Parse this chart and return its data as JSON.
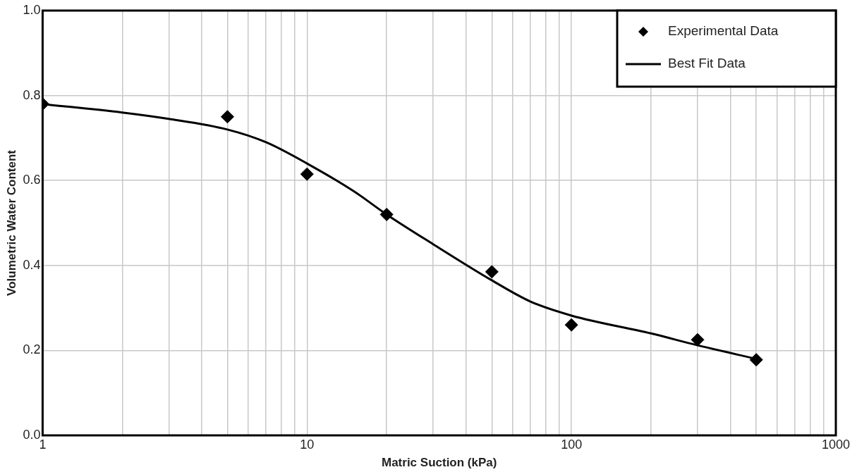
{
  "chart_data": {
    "type": "scatter",
    "xlabel": "Matric Suction (kPa)",
    "ylabel": "Volumetric Water Content",
    "log": "x",
    "grid": true,
    "legend": "top right",
    "xlim": [
      1,
      1000
    ],
    "xticks": [
      1,
      {
        "value": 2,
        "label": null
      },
      {
        "value": 3,
        "label": null
      },
      {
        "value": 4,
        "label": null
      },
      {
        "value": 5,
        "label": null
      },
      {
        "value": 6,
        "label": null
      },
      {
        "value": 7,
        "label": null
      },
      {
        "value": 8,
        "label": null
      },
      {
        "value": 9,
        "label": null
      },
      10,
      {
        "value": 20,
        "label": null
      },
      {
        "value": 30,
        "label": null
      },
      {
        "value": 40,
        "label": null
      },
      {
        "value": 50,
        "label": null
      },
      {
        "value": 60,
        "label": null
      },
      {
        "value": 70,
        "label": null
      },
      {
        "value": 80,
        "label": null
      },
      {
        "value": 90,
        "label": null
      },
      100,
      {
        "value": 200,
        "label": null
      },
      {
        "value": 300,
        "label": null
      },
      {
        "value": 400,
        "label": null
      },
      {
        "value": 500,
        "label": null
      },
      {
        "value": 600,
        "label": null
      },
      {
        "value": 700,
        "label": null
      },
      {
        "value": 800,
        "label": null
      },
      {
        "value": 900,
        "label": null
      },
      1000
    ],
    "ylim": [
      0,
      1
    ],
    "yticks": [
      {
        "value": 0,
        "label": "0.0"
      },
      0.2,
      0.4,
      0.6,
      0.8,
      {
        "value": 1,
        "label": "1.0"
      }
    ],
    "series": [
      {
        "name": "Experimental Data",
        "marker": "diamond",
        "color": "#000000",
        "x": [
          1,
          5,
          10,
          20,
          50,
          100,
          300,
          500
        ],
        "values": [
          0.78,
          0.75,
          0.615,
          0.52,
          0.385,
          0.26,
          0.225,
          0.178
        ]
      },
      {
        "name": "Best Fit Data",
        "type": "line",
        "marker": "none",
        "line_style": "solid",
        "color": "#000000",
        "x": [
          1,
          2,
          3,
          5,
          7,
          10,
          15,
          20,
          30,
          50,
          70,
          100,
          200,
          300,
          500
        ],
        "values": [
          0.78,
          0.76,
          0.745,
          0.72,
          0.69,
          0.64,
          0.575,
          0.52,
          0.45,
          0.365,
          0.315,
          0.282,
          0.24,
          0.212,
          0.18
        ]
      }
    ]
  }
}
